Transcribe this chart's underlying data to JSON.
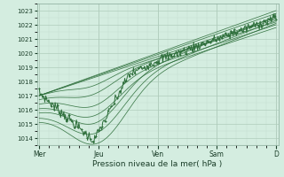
{
  "bg_color": "#d4ede0",
  "plot_bg_color": "#d4ede0",
  "grid_major_color": "#b0ccbc",
  "grid_minor_color": "#c4ddd0",
  "line_color": "#2d6e3a",
  "ylim": [
    1013.5,
    1023.5
  ],
  "yticks": [
    1014,
    1015,
    1016,
    1017,
    1018,
    1019,
    1020,
    1021,
    1022,
    1023
  ],
  "xtick_labels": [
    "Mer",
    "Jeu",
    "Ven",
    "Sam",
    "D"
  ],
  "xtick_pos": [
    0.0,
    0.25,
    0.5,
    0.75,
    1.0
  ],
  "xlabel": "Pression niveau de la mer( hPa )"
}
